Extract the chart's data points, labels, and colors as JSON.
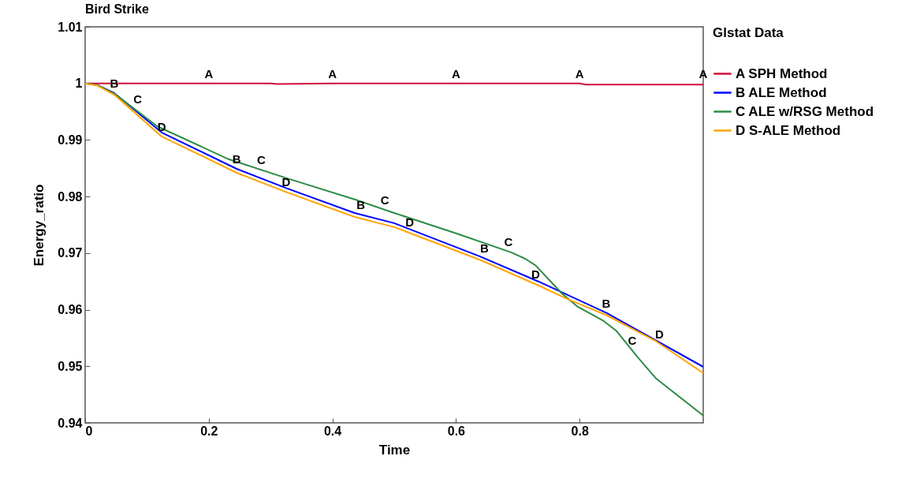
{
  "chart_data": {
    "type": "line",
    "title": "Bird Strike",
    "xlabel": "Time",
    "ylabel": "Energy_ratio",
    "legend_title": "Glstat Data",
    "xlim": [
      0,
      1
    ],
    "xticks": [
      0,
      0.2,
      0.4,
      0.6,
      0.8
    ],
    "ylim": [
      0.94,
      1.01
    ],
    "yticks": [
      0.94,
      0.95,
      0.96,
      0.97,
      0.98,
      0.99,
      1,
      1.01
    ],
    "grid": false,
    "legend": "right",
    "marker": "none",
    "line_style": "solid",
    "series": [
      {
        "name": "A SPH Method",
        "color": "#d0103a",
        "x": [
          0,
          0.11,
          0.3,
          0.31,
          0.4,
          0.8,
          0.81,
          1.0
        ],
        "values": [
          1.0,
          1.0,
          1.0,
          0.9999,
          1.0,
          1.0,
          0.9998,
          0.9998
        ]
      },
      {
        "name": "B ALE Method",
        "color": "#0000ff",
        "x": [
          0,
          0.02,
          0.047,
          0.124,
          0.245,
          0.325,
          0.436,
          0.5,
          0.639,
          0.733,
          0.844,
          1.0
        ],
        "values": [
          1.0,
          0.9997,
          0.9983,
          0.9913,
          0.9849,
          0.9815,
          0.9771,
          0.9753,
          0.9694,
          0.965,
          0.9594,
          0.9499
        ]
      },
      {
        "name": "C ALE w/RSG Method",
        "color": "#2e8b45",
        "x": [
          0,
          0.02,
          0.047,
          0.117,
          0.232,
          0.33,
          0.436,
          0.5,
          0.6,
          0.69,
          0.712,
          0.729,
          0.771,
          0.796,
          0.839,
          0.86,
          0.894,
          0.924,
          1.0
        ],
        "values": [
          1.0,
          0.9997,
          0.9982,
          0.9924,
          0.9866,
          0.9831,
          0.9795,
          0.9771,
          0.9735,
          0.9701,
          0.969,
          0.9678,
          0.9629,
          0.9606,
          0.958,
          0.9562,
          0.9516,
          0.9478,
          0.9413
        ]
      },
      {
        "name": "D S-ALE Method",
        "color": "#ffa500",
        "x": [
          0,
          0.02,
          0.047,
          0.124,
          0.245,
          0.325,
          0.436,
          0.5,
          0.639,
          0.733,
          0.78,
          0.844,
          0.924,
          1.0
        ],
        "values": [
          1.0,
          0.9996,
          0.998,
          0.9906,
          0.9842,
          0.9808,
          0.9764,
          0.9746,
          0.9688,
          0.9643,
          0.9619,
          0.959,
          0.9544,
          0.9488
        ]
      }
    ],
    "annotations": [
      {
        "text": "A",
        "x": 0.2,
        "y": 1.0
      },
      {
        "text": "A",
        "x": 0.4,
        "y": 1.0
      },
      {
        "text": "A",
        "x": 0.6,
        "y": 1.0
      },
      {
        "text": "A",
        "x": 0.8,
        "y": 1.0
      },
      {
        "text": "A",
        "x": 1.0,
        "y": 1.0
      },
      {
        "text": "B",
        "x": 0.047,
        "y": 0.9983
      },
      {
        "text": "B",
        "x": 0.245,
        "y": 0.9849
      },
      {
        "text": "B",
        "x": 0.446,
        "y": 0.9768
      },
      {
        "text": "B",
        "x": 0.646,
        "y": 0.9691
      },
      {
        "text": "B",
        "x": 0.843,
        "y": 0.9594
      },
      {
        "text": "C",
        "x": 0.085,
        "y": 0.9955
      },
      {
        "text": "C",
        "x": 0.285,
        "y": 0.9847
      },
      {
        "text": "C",
        "x": 0.485,
        "y": 0.9777
      },
      {
        "text": "C",
        "x": 0.685,
        "y": 0.9703
      },
      {
        "text": "C",
        "x": 0.885,
        "y": 0.9528
      },
      {
        "text": "D",
        "x": 0.124,
        "y": 0.9906
      },
      {
        "text": "D",
        "x": 0.325,
        "y": 0.9808
      },
      {
        "text": "D",
        "x": 0.525,
        "y": 0.9738
      },
      {
        "text": "D",
        "x": 0.729,
        "y": 0.9645
      },
      {
        "text": "D",
        "x": 0.929,
        "y": 0.954
      }
    ]
  }
}
